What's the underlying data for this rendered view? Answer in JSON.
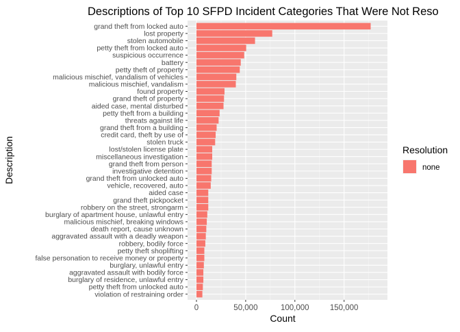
{
  "chart_data": {
    "type": "bar",
    "orientation": "horizontal",
    "title": "Descriptions of Top 10 SFPD Incident Categories That Were Not Reso",
    "xlabel": "Count",
    "ylabel": "Description",
    "xlim": [
      0,
      185000
    ],
    "x_ticks": [
      0,
      50000,
      100000,
      150000
    ],
    "x_tick_labels": [
      "0",
      "50,000",
      "100,000",
      "150,000"
    ],
    "grid": true,
    "legend": {
      "title": "Resolution",
      "position": "right",
      "entries": [
        {
          "label": "none",
          "color": "#F8766D"
        }
      ]
    },
    "colors": {
      "bar": "#F8766D",
      "panel": "#EBEBEB",
      "grid_major": "#FFFFFF",
      "grid_minor": "#F5F5F5"
    },
    "series": [
      {
        "name": "none"
      }
    ],
    "categories": [
      "grand theft from locked auto",
      "lost property",
      "stolen automobile",
      "petty theft from locked auto",
      "suspicious occurrence",
      "battery",
      "petty theft of property",
      "malicious mischief, vandalism of vehicles",
      "malicious mischief, vandalism",
      "found property",
      "grand theft of property",
      "aided case, mental disturbed",
      "petty theft from a building",
      "threats against life",
      "grand theft from a building",
      "credit card, theft by use of",
      "stolen truck",
      "lost/stolen license plate",
      "miscellaneous investigation",
      "grand theft from person",
      "investigative detention",
      "grand theft from unlocked auto",
      "vehicle, recovered, auto",
      "aided case",
      "grand theft pickpocket",
      "robbery on the street, strongarm",
      "burglary of apartment house, unlawful entry",
      "malicious mischief, breaking windows",
      "death report, cause unknown",
      "aggravated assault with a deadly weapon",
      "robbery, bodily force",
      "petty theft shoplifting",
      "false personation to receive money or property",
      "burglary, unlawful entry",
      "aggravated assault with bodily force",
      "burglary of residence, unlawful entry",
      "petty theft from unlocked auto",
      "violation of restraining order"
    ],
    "values": [
      177000,
      77000,
      59500,
      50500,
      48500,
      45000,
      44000,
      40500,
      40000,
      28500,
      28000,
      27500,
      23500,
      22500,
      20500,
      19500,
      19000,
      16000,
      16000,
      15500,
      15500,
      15000,
      14500,
      12000,
      12000,
      12000,
      11000,
      10500,
      10000,
      9500,
      9000,
      8000,
      8000,
      7500,
      7000,
      7000,
      6500,
      6000
    ]
  }
}
